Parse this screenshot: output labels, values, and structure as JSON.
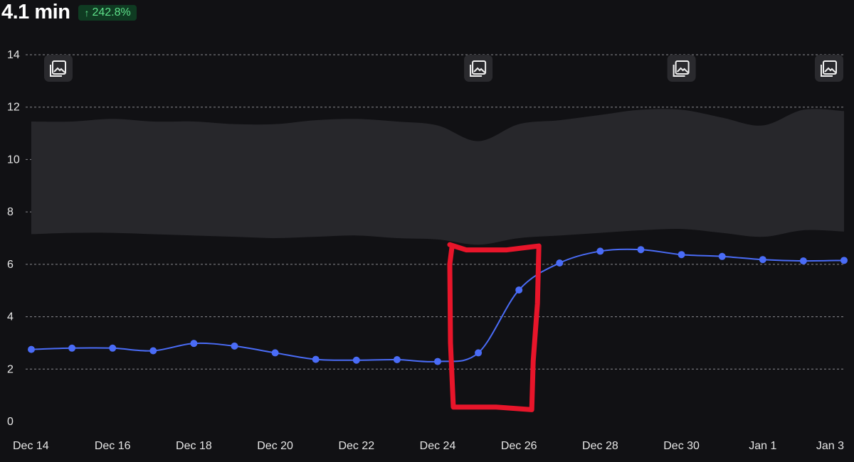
{
  "header": {
    "value": "4.1 min",
    "change": "242.8%",
    "change_direction": "up",
    "change_color": "#5ee08a"
  },
  "chart_data": {
    "type": "line",
    "categories": [
      "Dec 14",
      "Dec 15",
      "Dec 16",
      "Dec 17",
      "Dec 18",
      "Dec 19",
      "Dec 20",
      "Dec 21",
      "Dec 22",
      "Dec 23",
      "Dec 24",
      "Dec 25",
      "Dec 26",
      "Dec 27",
      "Dec 28",
      "Dec 29",
      "Dec 30",
      "Dec 31",
      "Jan 1",
      "Jan 2",
      "Jan 3"
    ],
    "x_tick_labels": [
      "Dec 14",
      "Dec 16",
      "Dec 18",
      "Dec 20",
      "Dec 22",
      "Dec 24",
      "Dec 26",
      "Dec 28",
      "Dec 30",
      "Jan 1",
      "Jan 3"
    ],
    "series": [
      {
        "values": [
          2.75,
          2.8,
          2.8,
          2.7,
          2.98,
          2.88,
          2.62,
          2.37,
          2.34,
          2.36,
          2.29,
          2.62,
          5.02,
          6.05,
          6.5,
          6.56,
          6.37,
          6.3,
          6.18,
          6.13,
          6.15
        ],
        "color": "#4a6cf7"
      }
    ],
    "band": {
      "upper": [
        11.45,
        11.45,
        11.55,
        11.45,
        11.45,
        11.35,
        11.35,
        11.5,
        11.55,
        11.45,
        11.3,
        10.7,
        11.35,
        11.5,
        11.7,
        11.9,
        11.9,
        11.6,
        11.3,
        11.9,
        11.85
      ],
      "lower": [
        7.15,
        7.2,
        7.2,
        7.15,
        7.1,
        7.05,
        7.0,
        7.05,
        7.1,
        7.0,
        6.95,
        6.75,
        7.0,
        7.1,
        7.2,
        7.3,
        7.35,
        7.2,
        7.05,
        7.3,
        7.25
      ],
      "color": "#27272b"
    },
    "y_ticks": [
      0,
      2,
      4,
      6,
      8,
      10,
      12,
      14
    ],
    "ylim": [
      0,
      14
    ],
    "grid": true,
    "annotations_icon_positions": [
      "Dec 14",
      "Dec 25",
      "Dec 30",
      "Jan 3"
    ],
    "highlight_box": {
      "x_from": "Dec 24",
      "x_to": "Dec 26",
      "color": "#e8152a"
    }
  }
}
